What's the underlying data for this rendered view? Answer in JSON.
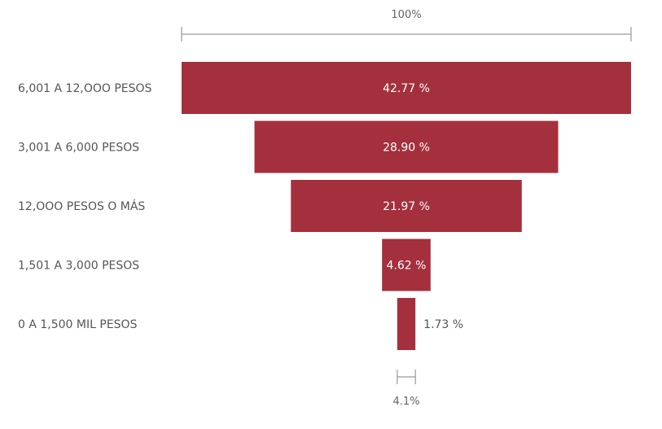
{
  "chart_data": {
    "type": "funnel",
    "categories": [
      "6,001 A 12,OOO PESOS",
      "3,001 A 6,000 PESOS",
      "12,OOO PESOS O MÁS",
      "1,501 A 3,000 PESOS",
      "0 A 1,500 MIL PESOS"
    ],
    "values": [
      42.77,
      28.9,
      21.97,
      4.62,
      1.73
    ],
    "value_labels": [
      "42.77 %",
      "28.90 %",
      "21.97 %",
      "4.62 %",
      "1.73 %"
    ],
    "top_measure_label": "100%",
    "bottom_measure_label": "4.1%",
    "bar_color": "#a4303d"
  }
}
